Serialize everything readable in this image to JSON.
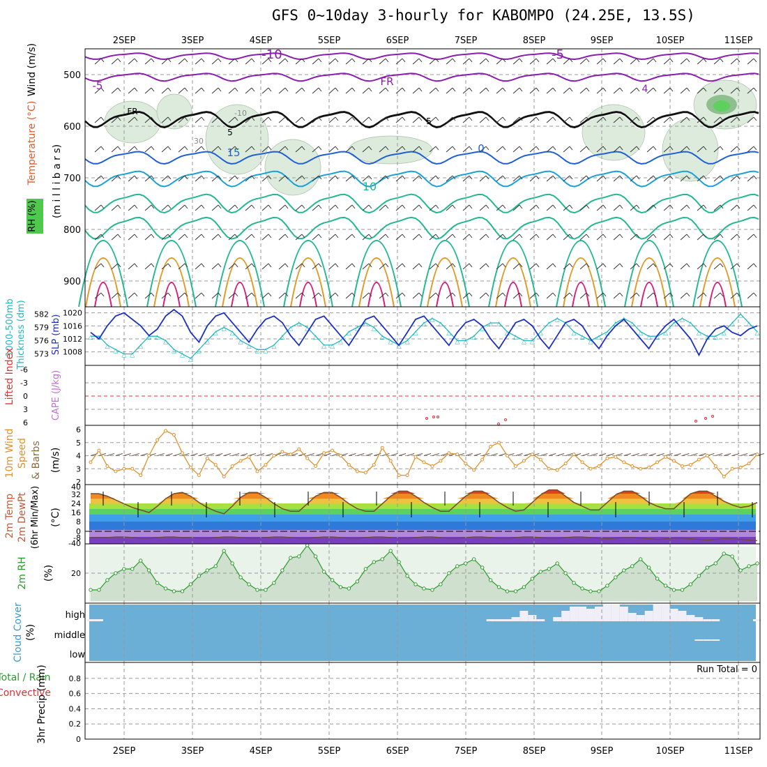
{
  "page": {
    "title": "GFS 0~10day 3-hourly for KABOMPO (24.25E, 13.5S)"
  },
  "colors": {
    "grid": "#9a9a9a",
    "temp_neg": "#8a1cb0",
    "temp_low": "#1e5fd8",
    "temp_mid": "#1aa0d8",
    "temp_15": "#22b890",
    "temp_warm": "#e09a28",
    "temp_hot": "#d81c78",
    "slp": "#1a2fc8",
    "thickness": "#22b8c0",
    "wind10m": "#e0902a",
    "rh": "#2a9a2a",
    "cloud": "#6baed6",
    "cape_zero": "#e03030"
  },
  "chart_data": [
    {
      "type": "line",
      "panel": "upper-air",
      "x": [
        "2SEP",
        "3SEP",
        "4SEP",
        "5SEP",
        "6SEP",
        "7SEP",
        "8SEP",
        "9SEP",
        "10SEP",
        "11SEP"
      ],
      "y_label_parts": [
        "Wind (m/s)",
        "Temperature (°C)",
        "RH (%)",
        "(m i l l i b a r s)"
      ],
      "y_ticks": [
        500,
        600,
        700,
        800,
        900
      ],
      "ylim": [
        450,
        950
      ],
      "contour_labels": [
        "-10",
        "-5",
        "FR",
        "5",
        "15",
        "10",
        "30",
        "-10",
        "-5",
        "FR",
        "5",
        "0",
        "4"
      ]
    },
    {
      "type": "line",
      "panel": "slp-thickness",
      "y_label_parts": [
        "1000-500mb",
        "Thickness (dm)",
        "SLP (mb)"
      ],
      "y_ticks_left": [
        "582",
        "579",
        "576",
        "573"
      ],
      "y_ticks_right": [
        "1020",
        "1016",
        "1012",
        "1008"
      ],
      "series": [
        {
          "name": "SLP",
          "values": [
            1014,
            1012,
            1016,
            1019,
            1020,
            1018,
            1016,
            1013,
            1015,
            1019,
            1021,
            1019,
            1014,
            1011,
            1016,
            1019,
            1020,
            1017,
            1014,
            1011,
            1015,
            1018,
            1019,
            1017,
            1013,
            1010,
            1014,
            1018,
            1019,
            1016,
            1013,
            1010,
            1014,
            1018,
            1019,
            1016,
            1013,
            1010,
            1014,
            1018,
            1019,
            1016,
            1013,
            1010,
            1014,
            1017,
            1018,
            1016,
            1012,
            1009,
            1013,
            1017,
            1018,
            1016,
            1012,
            1009,
            1013,
            1017,
            1018,
            1016,
            1012,
            1009,
            1013,
            1016,
            1018,
            1015,
            1012,
            1009,
            1013,
            1016,
            1018,
            1015,
            1012,
            1007,
            1012,
            1015,
            1016,
            1014,
            1013,
            1015,
            1016
          ]
        },
        {
          "name": "Thickness",
          "values": [
            577,
            577,
            575,
            574,
            573,
            573,
            575,
            577,
            577,
            576,
            574,
            573,
            572,
            574,
            576,
            578,
            579,
            578,
            576,
            575,
            574,
            574,
            575,
            577,
            579,
            580,
            579,
            577,
            575,
            575,
            576,
            578,
            579,
            580,
            579,
            577,
            576,
            575,
            576,
            578,
            580,
            581,
            580,
            578,
            576,
            576,
            577,
            579,
            580,
            580,
            578,
            577,
            576,
            576,
            578,
            580,
            581,
            580,
            578,
            577,
            576,
            577,
            578,
            580,
            581,
            580,
            578,
            577,
            577,
            578,
            580,
            581,
            580,
            578,
            577,
            577,
            578,
            580,
            582,
            580,
            578
          ]
        }
      ]
    },
    {
      "type": "line",
      "panel": "cape-li",
      "y_label_parts": [
        "Lifted Index",
        "CAPE (J/kg)"
      ],
      "y_ticks": [
        "-6",
        "-3",
        "0",
        "3",
        "6"
      ],
      "ylim": [
        -6,
        6
      ]
    },
    {
      "type": "line",
      "panel": "wind10m",
      "y_label_parts": [
        "10m Wind",
        "Speed",
        "& Barbs",
        "(m/s)"
      ],
      "y_ticks": [
        "6",
        "5",
        "4",
        "3",
        "2"
      ],
      "ylim": [
        2,
        6
      ],
      "series": [
        {
          "name": "Speed",
          "values": [
            3.5,
            4.4,
            3.2,
            2.8,
            3.0,
            3.0,
            2.5,
            4.0,
            5.2,
            5.9,
            5.6,
            4.2,
            3.1,
            2.5,
            3.8,
            3.3,
            2.4,
            3.2,
            3.6,
            3.9,
            2.8,
            3.3,
            4.0,
            4.3,
            4.1,
            4.5,
            3.8,
            3.2,
            4.2,
            4.4,
            4.0,
            3.3,
            2.8,
            2.7,
            3.3,
            4.6,
            3.6,
            2.5,
            2.5,
            3.9,
            3.5,
            3.2,
            3.6,
            4.2,
            4.1,
            3.4,
            2.9,
            3.7,
            4.7,
            5.0,
            4.0,
            3.2,
            3.6,
            4.1,
            3.7,
            3.0,
            2.9,
            3.4,
            4.1,
            3.5,
            3.0,
            3.2,
            3.8,
            3.9,
            3.5,
            3.2,
            3.0,
            3.1,
            3.5,
            3.9,
            3.6,
            3.2,
            3.3,
            3.7,
            4.0,
            3.2,
            2.4,
            3.0,
            3.1,
            3.4,
            4.1
          ]
        }
      ]
    },
    {
      "type": "area",
      "panel": "temp2m",
      "y_label_parts": [
        "2m Temp",
        "2m DewPt",
        "(6hr Min/Max)",
        "(°C)"
      ],
      "y_ticks": [
        "40",
        "32",
        "24",
        "16",
        "8",
        "0",
        "-8",
        "-40"
      ],
      "series": [
        {
          "name": "Temp",
          "values": [
            30,
            30,
            28,
            25,
            22,
            19,
            17,
            15,
            20,
            26,
            30,
            31,
            28,
            23,
            19,
            16,
            14,
            20,
            27,
            31,
            31,
            27,
            22,
            18,
            16,
            16,
            22,
            28,
            31,
            31,
            27,
            22,
            18,
            16,
            16,
            22,
            28,
            32,
            32,
            28,
            23,
            19,
            16,
            16,
            22,
            28,
            32,
            32,
            28,
            23,
            19,
            16,
            17,
            23,
            29,
            33,
            33,
            28,
            23,
            20,
            17,
            17,
            23,
            29,
            32,
            32,
            28,
            23,
            20,
            18,
            18,
            24,
            30,
            32,
            32,
            28,
            24,
            21,
            19,
            20,
            23
          ]
        },
        {
          "name": "DewPt",
          "values": [
            -9,
            -9,
            -9,
            -10,
            -10,
            -9,
            -8,
            -8,
            -9,
            -10,
            -10,
            -9,
            -9,
            -8,
            -8,
            -9,
            -10,
            -10,
            -9,
            -8,
            -8,
            -9,
            -10,
            -10,
            -9,
            -8,
            -8,
            -9,
            -10,
            -10,
            -9,
            -8,
            -8,
            -9,
            -10,
            -10,
            -9,
            -8,
            -8,
            -9,
            -10,
            -10,
            -9,
            -8,
            -8,
            -9,
            -10,
            -10,
            -9,
            -8,
            -8,
            -9,
            -10,
            -10,
            -9,
            -8,
            -8,
            -9,
            -10,
            -10,
            -9,
            -8,
            -7,
            -8,
            -9,
            -9,
            -8,
            -7,
            -6,
            -7,
            -8,
            -8,
            -7,
            -6,
            -5,
            -6,
            -7,
            -7,
            -6,
            -5,
            -4
          ]
        }
      ]
    },
    {
      "type": "area",
      "panel": "rh2m",
      "y_label_parts": [
        "2m RH",
        "(%)"
      ],
      "y_ticks": [
        "20"
      ],
      "series": [
        {
          "name": "RH",
          "values": [
            8,
            8,
            15,
            20,
            23,
            23,
            29,
            22,
            13,
            9,
            7,
            7,
            12,
            18,
            22,
            25,
            36,
            27,
            17,
            12,
            8,
            8,
            13,
            22,
            31,
            32,
            40,
            32,
            21,
            15,
            10,
            9,
            14,
            23,
            28,
            30,
            36,
            28,
            18,
            12,
            9,
            8,
            12,
            20,
            25,
            27,
            30,
            24,
            15,
            10,
            7,
            7,
            10,
            16,
            21,
            23,
            27,
            20,
            13,
            9,
            7,
            7,
            11,
            17,
            22,
            25,
            30,
            24,
            16,
            11,
            8,
            8,
            12,
            18,
            24,
            27,
            34,
            32,
            22,
            25,
            27
          ]
        }
      ]
    },
    {
      "type": "bar",
      "panel": "cloud",
      "y_label_parts": [
        "Cloud Cover",
        "(%)"
      ],
      "y_ticks": [
        "high",
        "middle",
        "low"
      ],
      "series": [
        {
          "name": "high",
          "values": [
            10,
            10,
            0,
            0,
            0,
            0,
            0,
            0,
            0,
            0,
            0,
            0,
            0,
            0,
            0,
            0,
            0,
            0,
            0,
            0,
            0,
            0,
            0,
            0,
            0,
            0,
            0,
            0,
            0,
            0,
            0,
            0,
            0,
            0,
            0,
            0,
            0,
            0,
            0,
            0,
            0,
            0,
            0,
            0,
            0,
            0,
            0,
            0,
            10,
            10,
            10,
            20,
            50,
            30,
            10,
            0,
            20,
            50,
            70,
            70,
            60,
            70,
            80,
            80,
            70,
            40,
            30,
            50,
            80,
            80,
            60,
            50,
            30,
            20,
            10,
            10,
            0,
            0,
            0,
            0,
            10
          ]
        },
        {
          "name": "middle",
          "values": [
            0,
            0,
            0,
            0,
            0,
            0,
            0,
            0,
            0,
            0,
            0,
            0,
            0,
            0,
            0,
            0,
            0,
            0,
            0,
            0,
            0,
            0,
            0,
            0,
            0,
            0,
            0,
            0,
            0,
            0,
            0,
            0,
            0,
            0,
            0,
            0,
            0,
            0,
            0,
            0,
            0,
            0,
            0,
            0,
            0,
            0,
            0,
            0,
            0,
            0,
            0,
            0,
            0,
            0,
            0,
            0,
            0,
            0,
            0,
            0,
            0,
            0,
            0,
            0,
            0,
            0,
            0,
            0,
            0,
            0,
            0,
            0,
            0,
            10,
            10,
            10,
            0,
            0,
            0,
            0,
            0
          ]
        }
      ]
    },
    {
      "type": "bar",
      "panel": "precip",
      "y_label_parts": [
        "Total / Rain",
        "Convective",
        "3hr Precip (mm)"
      ],
      "y_ticks": [
        "0.8",
        "0.6",
        "0.4",
        "0.2",
        "0"
      ],
      "ylim": [
        0,
        0.9
      ],
      "run_total": "Run Total = 0",
      "values": []
    }
  ]
}
